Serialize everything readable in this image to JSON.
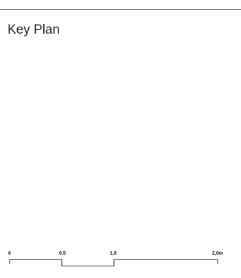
{
  "page": {
    "title": "Key Plan"
  },
  "scale_bar": {
    "labels": [
      "0",
      "0,5",
      "1,0",
      "2,0m"
    ],
    "values": [
      0,
      0.5,
      1.0,
      2.0
    ],
    "max": 2.0,
    "color": "#1a1a1a"
  }
}
